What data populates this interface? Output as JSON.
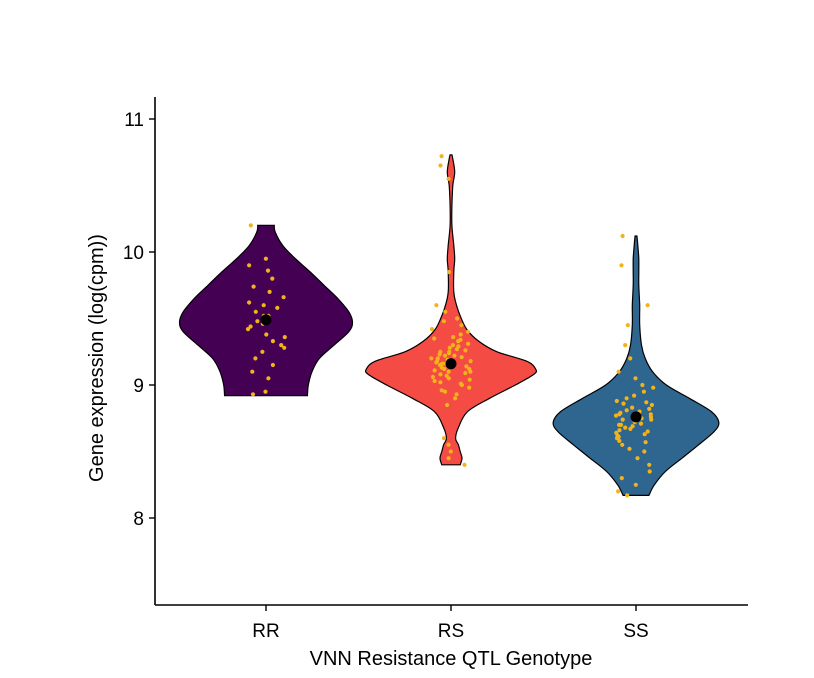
{
  "chart_data": {
    "type": "violin",
    "title": "",
    "xlabel": "VNN Resistance QTL Genotype",
    "ylabel": "Gene expression  (log(cpm))",
    "ylim": [
      7.35,
      11.15
    ],
    "yticks": [
      8,
      9,
      10,
      11
    ],
    "grid": false,
    "legend": "none",
    "categories": [
      "RR",
      "RS",
      "SS"
    ],
    "groups": [
      {
        "name": "RR",
        "color": "#440154",
        "mean": 9.49,
        "min": 8.92,
        "max": 10.2,
        "density": [
          [
            8.92,
            0.45
          ],
          [
            9.0,
            0.46
          ],
          [
            9.1,
            0.5
          ],
          [
            9.2,
            0.58
          ],
          [
            9.3,
            0.74
          ],
          [
            9.4,
            0.9
          ],
          [
            9.47,
            0.94
          ],
          [
            9.55,
            0.9
          ],
          [
            9.65,
            0.78
          ],
          [
            9.75,
            0.63
          ],
          [
            9.85,
            0.48
          ],
          [
            9.95,
            0.32
          ],
          [
            10.05,
            0.18
          ],
          [
            10.15,
            0.1
          ],
          [
            10.2,
            0.09
          ]
        ],
        "points": [
          9.49,
          9.52,
          9.44,
          9.55,
          9.6,
          9.38,
          9.62,
          9.3,
          9.7,
          9.25,
          9.48,
          9.58,
          9.8,
          9.9,
          9.95,
          9.2,
          9.15,
          9.1,
          9.05,
          8.95,
          8.93,
          9.42,
          9.66,
          9.36,
          10.2,
          9.52,
          9.28,
          9.74,
          9.46,
          9.86,
          9.33
        ]
      },
      {
        "name": "RS",
        "color": "#f54b45",
        "mean": 9.16,
        "min": 8.4,
        "max": 10.73,
        "density": [
          [
            8.4,
            0.1
          ],
          [
            8.45,
            0.12
          ],
          [
            8.5,
            0.1
          ],
          [
            8.55,
            0.08
          ],
          [
            8.6,
            0.05
          ],
          [
            8.68,
            0.08
          ],
          [
            8.8,
            0.18
          ],
          [
            8.9,
            0.42
          ],
          [
            9.0,
            0.7
          ],
          [
            9.08,
            0.9
          ],
          [
            9.12,
            0.92
          ],
          [
            9.18,
            0.82
          ],
          [
            9.25,
            0.5
          ],
          [
            9.33,
            0.3
          ],
          [
            9.42,
            0.17
          ],
          [
            9.52,
            0.1
          ],
          [
            9.6,
            0.06
          ],
          [
            9.7,
            0.03
          ],
          [
            9.85,
            0.03
          ],
          [
            9.95,
            0.04
          ],
          [
            10.05,
            0.03
          ],
          [
            10.2,
            0.01
          ],
          [
            10.35,
            0.01
          ],
          [
            10.5,
            0.02
          ],
          [
            10.6,
            0.04
          ],
          [
            10.7,
            0.02
          ],
          [
            10.73,
            0.01
          ]
        ],
        "points": [
          9.16,
          9.2,
          9.1,
          9.05,
          9.25,
          9.3,
          9.12,
          9.18,
          9.0,
          8.95,
          9.22,
          9.35,
          9.4,
          9.08,
          9.14,
          9.28,
          9.02,
          8.9,
          8.85,
          9.45,
          9.5,
          9.6,
          9.15,
          9.24,
          9.11,
          9.06,
          9.19,
          9.33,
          9.27,
          8.98,
          8.6,
          8.55,
          8.5,
          8.45,
          8.4,
          9.85,
          10.55,
          10.72,
          10.65,
          9.38,
          9.17,
          9.13,
          9.21,
          9.09,
          9.04,
          9.31,
          9.26,
          9.01,
          8.93,
          9.36,
          9.42,
          9.48,
          9.55,
          9.23,
          9.07,
          9.29,
          9.34,
          8.96,
          9.12,
          9.2,
          9.16,
          9.22,
          9.1,
          9.03,
          9.18,
          9.25
        ]
      },
      {
        "name": "SS",
        "color": "#2f6690",
        "mean": 8.76,
        "min": 8.17,
        "max": 10.12,
        "density": [
          [
            8.17,
            0.14
          ],
          [
            8.25,
            0.2
          ],
          [
            8.35,
            0.32
          ],
          [
            8.45,
            0.5
          ],
          [
            8.55,
            0.68
          ],
          [
            8.65,
            0.85
          ],
          [
            8.72,
            0.9
          ],
          [
            8.8,
            0.82
          ],
          [
            8.9,
            0.58
          ],
          [
            9.0,
            0.33
          ],
          [
            9.1,
            0.18
          ],
          [
            9.2,
            0.1
          ],
          [
            9.3,
            0.06
          ],
          [
            9.45,
            0.04
          ],
          [
            9.6,
            0.04
          ],
          [
            9.75,
            0.03
          ],
          [
            9.85,
            0.03
          ],
          [
            9.95,
            0.03
          ],
          [
            10.05,
            0.02
          ],
          [
            10.12,
            0.01
          ]
        ],
        "points": [
          8.76,
          8.8,
          8.72,
          8.7,
          8.65,
          8.85,
          8.9,
          8.6,
          8.55,
          8.5,
          8.95,
          9.0,
          8.78,
          8.68,
          8.82,
          8.74,
          8.62,
          8.58,
          8.88,
          8.45,
          8.4,
          8.35,
          8.3,
          8.25,
          8.2,
          8.17,
          9.05,
          9.1,
          9.2,
          9.3,
          9.45,
          9.6,
          9.9,
          10.12,
          8.77,
          8.71,
          8.66,
          8.83,
          8.79,
          8.73,
          8.69,
          8.64,
          8.87,
          8.92,
          8.57,
          8.52,
          8.98,
          8.63,
          8.75,
          8.81,
          8.67,
          8.7,
          8.74,
          8.78,
          8.61,
          8.86
        ]
      }
    ]
  }
}
